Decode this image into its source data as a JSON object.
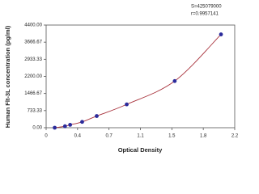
{
  "chart_data": {
    "type": "scatter",
    "annotations": [
      "S=425079000",
      "r=0.9957141"
    ],
    "x_label": "Optical Density",
    "y_label": "Human Flt-3L concentration (pg/ml)",
    "x": [
      0.1,
      0.22,
      0.28,
      0.42,
      0.59,
      0.94,
      1.5,
      2.04
    ],
    "series": [
      {
        "color": "#2b2b9b",
        "values": [
          0,
          62.5,
          125,
          250,
          500,
          1000,
          2000,
          4000
        ]
      }
    ],
    "curve_color": "#a8323c",
    "xlim": [
      0,
      2.2
    ],
    "xticks": [
      0,
      {
        "value": 0.3667,
        "label": "0.4"
      },
      {
        "value": 0.7333,
        "label": "0.7"
      },
      1.1,
      {
        "value": 1.4667,
        "label": "1.5"
      },
      {
        "value": 1.8333,
        "label": "1.8"
      },
      2.2
    ],
    "ylim": [
      0,
      4400
    ],
    "yticks": [
      {
        "value": 0,
        "label": "0.00"
      },
      733.33,
      1466.67,
      {
        "value": 2200,
        "label": "2200.00"
      },
      2933.33,
      3666.67,
      {
        "value": 4400,
        "label": "4400.00"
      }
    ]
  }
}
